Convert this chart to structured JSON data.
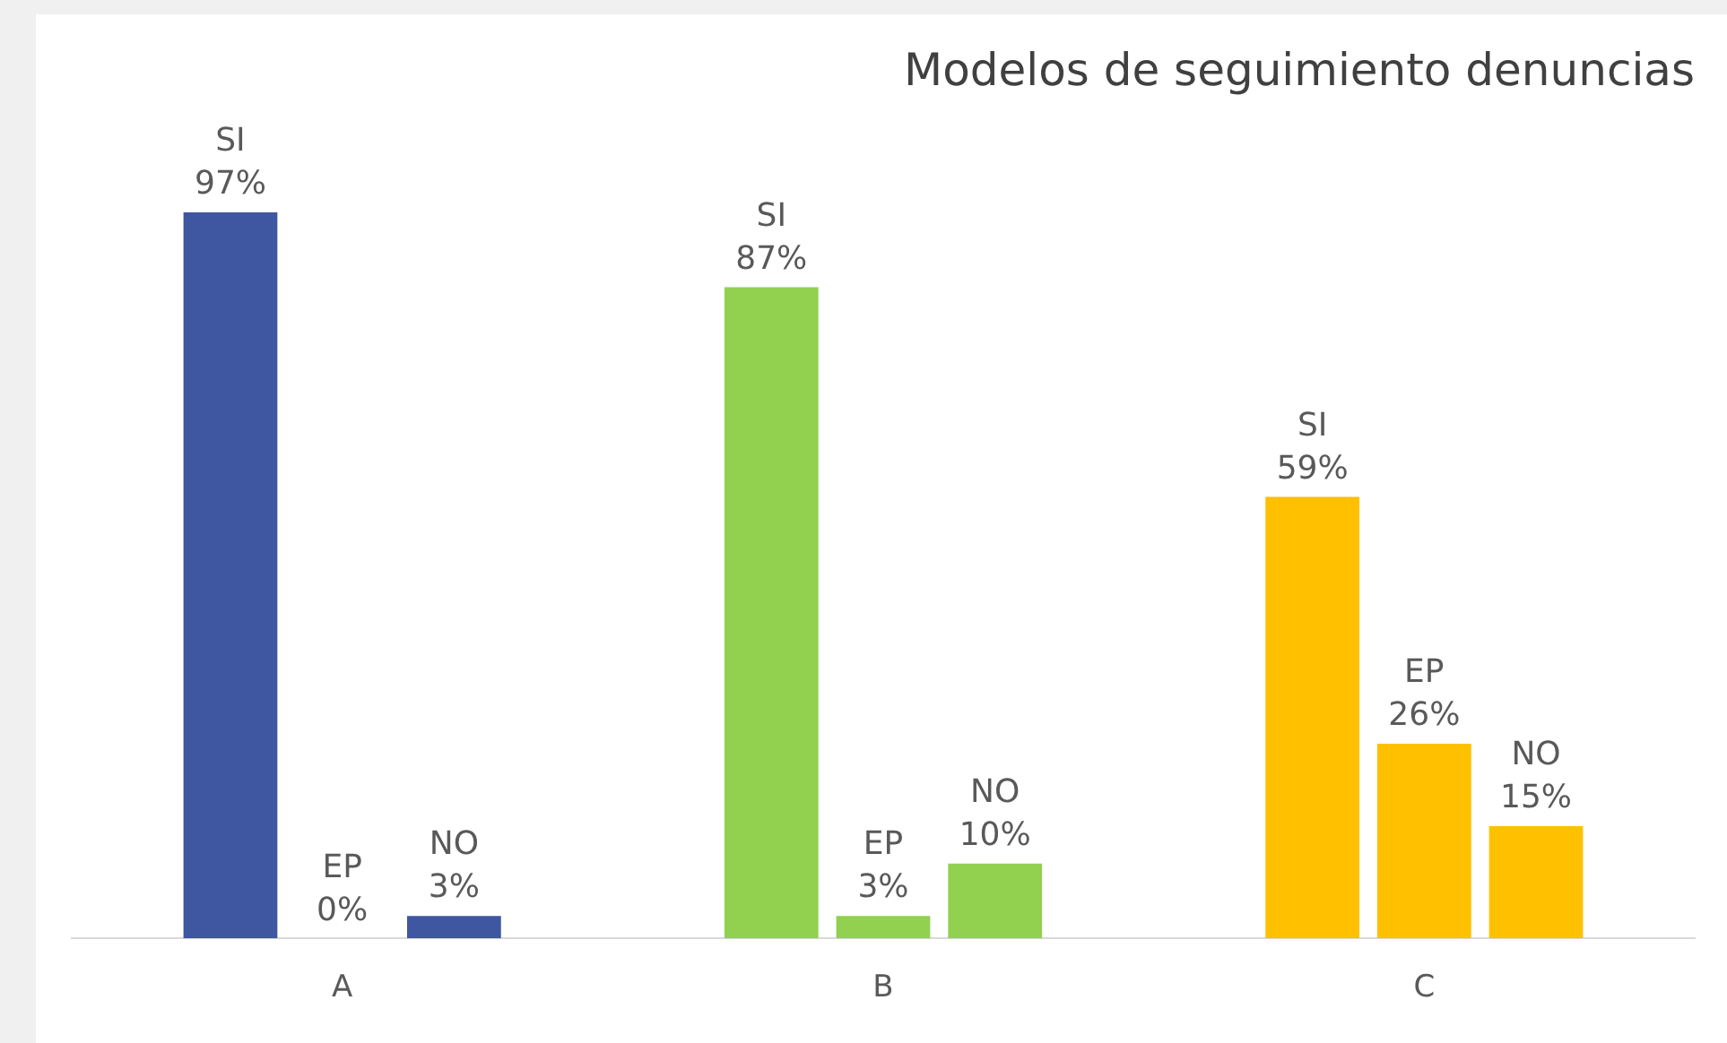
{
  "chart_data": {
    "type": "bar",
    "title": "Modelos de seguimiento denuncias",
    "categories": [
      "A",
      "B",
      "C"
    ],
    "series": [
      {
        "name": "SI",
        "colors": [
          "#3f56a0",
          "#92d050",
          "#ffc000"
        ],
        "values": [
          97,
          87,
          59
        ],
        "value_labels": [
          "97%",
          "87%",
          "59%"
        ]
      },
      {
        "name": "EP",
        "colors": [
          "#3f56a0",
          "#92d050",
          "#ffc000"
        ],
        "values": [
          0,
          3,
          26
        ],
        "value_labels": [
          "0%",
          "3%",
          "26%"
        ]
      },
      {
        "name": "NO",
        "colors": [
          "#3f56a0",
          "#92d050",
          "#ffc000"
        ],
        "values": [
          3,
          10,
          15
        ],
        "value_labels": [
          "3%",
          "10%",
          "15%"
        ]
      }
    ],
    "grid": false,
    "legend": false
  }
}
